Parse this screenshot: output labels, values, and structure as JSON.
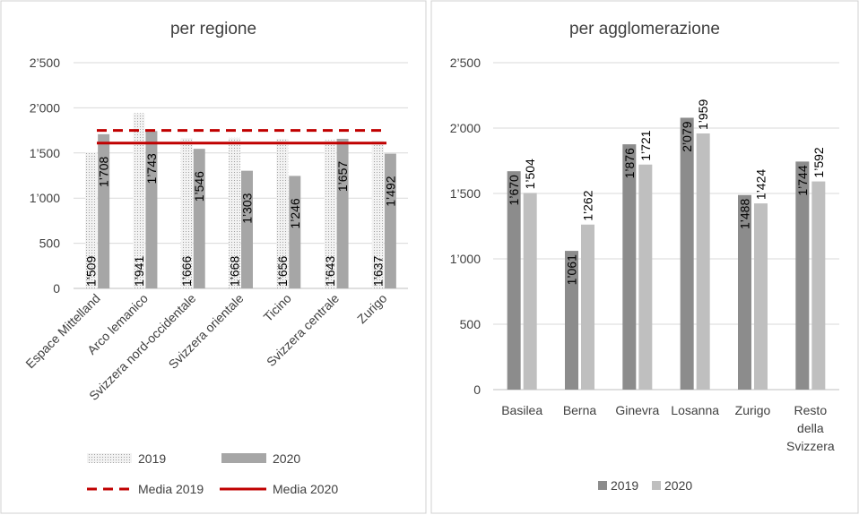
{
  "chart_data": [
    {
      "type": "bar",
      "title": "per regione",
      "categories": [
        "Espace Mittelland",
        "Arco lemanico",
        "Svizzera nord-occidentale",
        "Svizzera orientale",
        "Ticino",
        "Svizzera centrale",
        "Zurigo"
      ],
      "series": [
        {
          "name": "2019",
          "values": [
            1509,
            1941,
            1666,
            1668,
            1656,
            1643,
            1637
          ],
          "labels": [
            "1’509",
            "1’941",
            "1’666",
            "1’668",
            "1’656",
            "1’643",
            "1’637"
          ],
          "color": "#e6e6e6",
          "pattern": "dotted"
        },
        {
          "name": "2020",
          "values": [
            1708,
            1743,
            1546,
            1303,
            1246,
            1657,
            1492
          ],
          "labels": [
            "1’708",
            "1’743",
            "1’546",
            "1’303",
            "1’246",
            "1’657",
            "1’492"
          ],
          "color": "#a6a6a6"
        }
      ],
      "reference_lines": [
        {
          "name": "Media 2019",
          "value": 1750,
          "style": "dashed",
          "color": "#c00000"
        },
        {
          "name": "Media 2020",
          "value": 1610,
          "style": "solid",
          "color": "#c00000"
        }
      ],
      "yticks": [
        "0",
        "500",
        "1’000",
        "1’500",
        "2’000",
        "2’500"
      ],
      "ylim": [
        0,
        2500
      ],
      "grid": true,
      "legend_position": "bottom"
    },
    {
      "type": "bar",
      "title": "per agglomerazione",
      "categories": [
        "Basilea",
        "Berna",
        "Ginevra",
        "Losanna",
        "Zurigo",
        "Resto della Svizzera"
      ],
      "series": [
        {
          "name": "2019",
          "values": [
            1670,
            1061,
            1876,
            2079,
            1488,
            1744
          ],
          "labels": [
            "1’670",
            "1’061",
            "1’876",
            "2’079",
            "1’488",
            "1’744"
          ],
          "color": "#8c8c8c"
        },
        {
          "name": "2020",
          "values": [
            1504,
            1262,
            1721,
            1959,
            1424,
            1592
          ],
          "labels": [
            "1’504",
            "1’262",
            "1’721",
            "1’959",
            "1’424",
            "1’592"
          ],
          "color": "#bfbfbf"
        }
      ],
      "yticks": [
        "0",
        "500",
        "1’000",
        "1’500",
        "2’000",
        "2’500"
      ],
      "ylim": [
        0,
        2500
      ],
      "grid": true,
      "legend_position": "bottom"
    }
  ]
}
